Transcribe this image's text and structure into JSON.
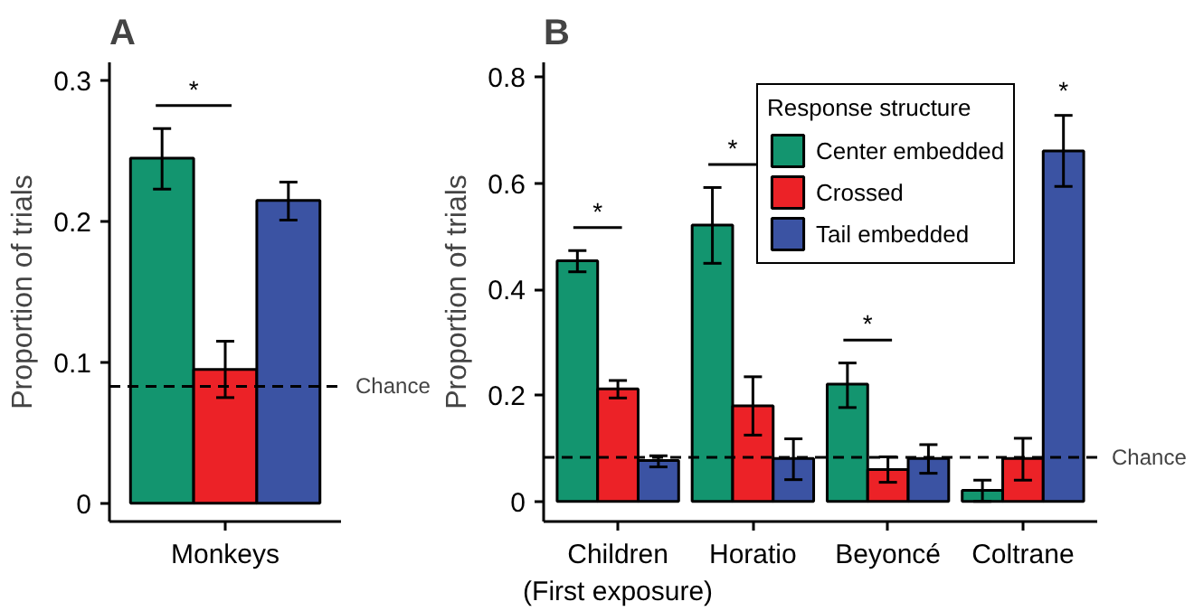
{
  "chart_data": [
    {
      "type": "bar",
      "title": "A",
      "ylabel": "Proportion of trials",
      "categories": [
        "Monkeys"
      ],
      "series": [
        {
          "color": "#13956f",
          "values": [
            0.245
          ],
          "errors": [
            [
              0.223,
              0.266
            ]
          ]
        },
        {
          "color": "#ec2227",
          "values": [
            0.095
          ],
          "errors": [
            [
              0.075,
              0.115
            ]
          ]
        },
        {
          "color": "#3b53a3",
          "values": [
            0.215
          ],
          "errors": [
            [
              0.201,
              0.228
            ]
          ]
        }
      ],
      "ylim": [
        -0.013,
        0.313
      ],
      "yticks": [
        0,
        0.1,
        0.2,
        0.3
      ],
      "grid": false,
      "legend": false,
      "ref_lines": [
        {
          "axis": "y",
          "value": 0.083,
          "label": "Chance",
          "line_style": "dashed"
        }
      ],
      "annotations": [
        "*"
      ]
    },
    {
      "type": "bar",
      "title": "B",
      "ylabel": "Proportion of trials",
      "legend_title": "Response structure",
      "categories": [
        "Children\n(First exposure)",
        "Horatio",
        "Beyoncé",
        "Coltrane"
      ],
      "series": [
        {
          "name": "Center embedded",
          "color": "#13956f",
          "values": [
            0.454,
            0.521,
            0.221,
            0.021
          ],
          "errors": [
            [
              0.433,
              0.473
            ],
            [
              0.449,
              0.592
            ],
            [
              0.177,
              0.261
            ],
            [
              0.0,
              0.04
            ]
          ]
        },
        {
          "name": "Crossed",
          "color": "#ec2227",
          "values": [
            0.212,
            0.18,
            0.06,
            0.081
          ],
          "errors": [
            [
              0.195,
              0.228
            ],
            [
              0.125,
              0.235
            ],
            [
              0.036,
              0.084
            ],
            [
              0.04,
              0.119
            ]
          ]
        },
        {
          "name": "Tail embedded",
          "color": "#3b53a3",
          "values": [
            0.077,
            0.081,
            0.081,
            0.661
          ],
          "errors": [
            [
              0.065,
              0.086
            ],
            [
              0.041,
              0.118
            ],
            [
              0.053,
              0.107
            ],
            [
              0.594,
              0.728
            ]
          ]
        }
      ],
      "ylim": [
        -0.038,
        0.828
      ],
      "yticks": [
        0,
        0.2,
        0.4,
        0.6,
        0.8
      ],
      "grid": false,
      "legend": "top right",
      "ref_lines": [
        {
          "axis": "y",
          "value": 0.083,
          "label": "Chance",
          "line_style": "dashed"
        }
      ],
      "annotations": [
        "*",
        "*",
        "*",
        "*"
      ]
    }
  ]
}
